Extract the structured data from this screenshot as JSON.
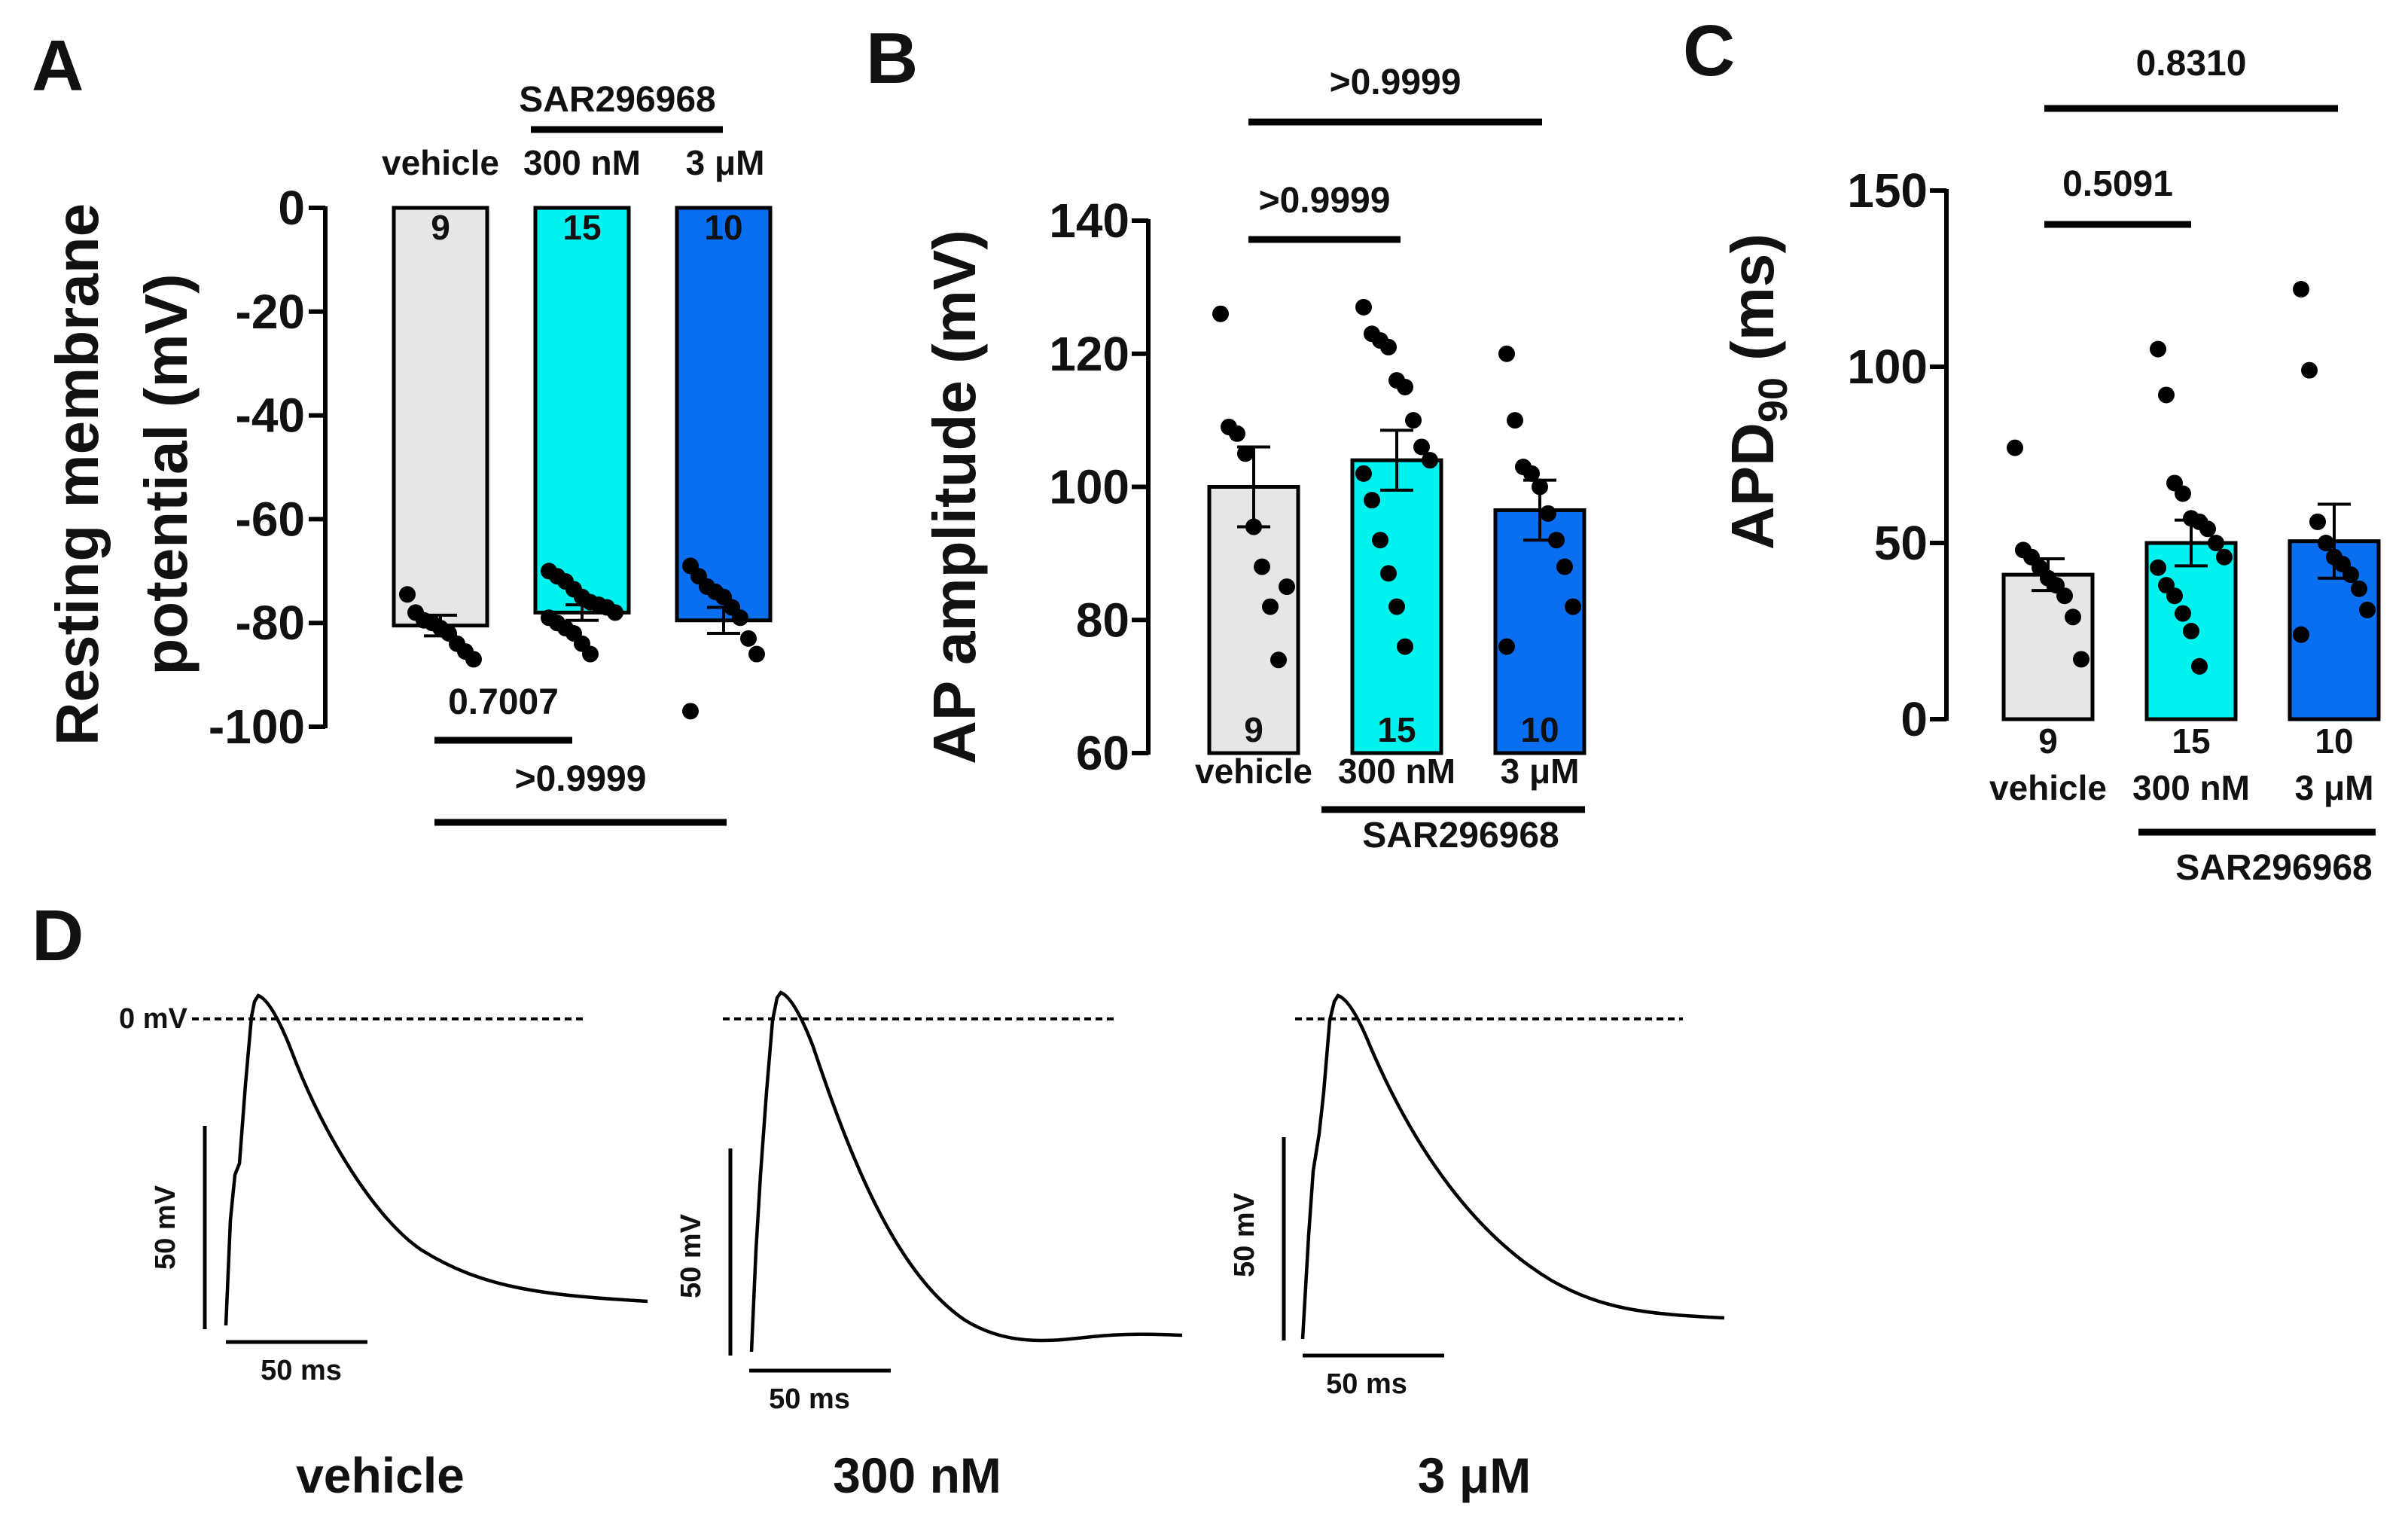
{
  "chart_data": [
    {
      "panel": "A",
      "type": "bar",
      "ylabel_line1": "Resting membrane",
      "ylabel_line2": "potential (mV)",
      "yticks": [
        "0",
        "-20",
        "-40",
        "-60",
        "-80",
        "-100"
      ],
      "ylim": [
        -100,
        0
      ],
      "categories": [
        "vehicle",
        "300 nM",
        "3 μM"
      ],
      "drug_label": "SAR296968",
      "values": [
        -80.5,
        -78,
        -79.5
      ],
      "sem": [
        2,
        1.5,
        2.5
      ],
      "n": [
        "9",
        "15",
        "10"
      ],
      "colors": [
        "#e6e6e6",
        "#00f3ee",
        "#0a6ef0"
      ],
      "points": [
        [
          -74.5,
          -78,
          -79.5,
          -80,
          -81,
          -82,
          -84,
          -85.5,
          -87
        ],
        [
          -70,
          -71,
          -72,
          -73.5,
          -75,
          -76,
          -76.5,
          -77,
          -78,
          -79,
          -80,
          -81,
          -82,
          -84,
          -86
        ],
        [
          -69,
          -71,
          -73,
          -74,
          -75,
          -77,
          -79,
          -83,
          -86,
          -97
        ]
      ],
      "comparisons": [
        {
          "label": "0.7007",
          "from": 0,
          "to": 1
        },
        {
          "label": ">0.9999",
          "from": 0,
          "to": 2
        }
      ]
    },
    {
      "panel": "B",
      "type": "bar",
      "ylabel": "AP amplitude (mV)",
      "yticks": [
        "140",
        "120",
        "100",
        "80",
        "60"
      ],
      "ylim": [
        60,
        140
      ],
      "categories": [
        "vehicle",
        "300 nM",
        "3 μM"
      ],
      "drug_label": "SAR296968",
      "values": [
        100,
        104,
        96.5
      ],
      "sem": [
        6,
        4.5,
        4.5
      ],
      "n": [
        "9",
        "15",
        "10"
      ],
      "colors": [
        "#e6e6e6",
        "#00f3ee",
        "#0a6ef0"
      ],
      "points": [
        [
          126,
          109,
          108,
          105,
          94,
          88,
          82,
          74,
          85
        ],
        [
          127,
          123,
          122,
          121,
          116,
          115,
          110,
          106,
          104,
          102,
          98,
          92,
          87,
          82,
          76
        ],
        [
          120,
          110,
          103,
          102,
          100,
          96,
          92,
          88,
          82,
          76
        ]
      ],
      "comparisons": [
        {
          "label": ">0.9999",
          "from": 0,
          "to": 1
        },
        {
          "label": ">0.9999",
          "from": 0,
          "to": 2
        }
      ]
    },
    {
      "panel": "C",
      "type": "bar",
      "ylabel_main": "APD",
      "ylabel_sub": "90",
      "ylabel_tail": " (ms)",
      "yticks": [
        "150",
        "100",
        "50",
        "0"
      ],
      "ylim": [
        0,
        150
      ],
      "categories": [
        "vehicle",
        "300 nM",
        "3 μM"
      ],
      "drug_label": "SAR296968",
      "values": [
        41,
        50,
        50.5
      ],
      "sem": [
        4.5,
        6.5,
        10.5
      ],
      "n": [
        "9",
        "15",
        "10"
      ],
      "colors": [
        "#e6e6e6",
        "#00f3ee",
        "#0a6ef0"
      ],
      "points": [
        [
          77,
          48,
          46,
          43,
          40,
          38,
          35,
          29,
          17
        ],
        [
          105,
          92,
          67,
          64,
          57,
          56,
          54,
          50,
          46,
          43,
          38,
          35,
          30,
          25,
          15
        ],
        [
          122,
          99,
          56,
          50,
          46,
          44,
          41,
          37,
          31,
          24
        ]
      ],
      "comparisons": [
        {
          "label": "0.5091",
          "from": 0,
          "to": 1
        },
        {
          "label": "0.8310",
          "from": 0,
          "to": 2
        }
      ]
    }
  ],
  "panel_d": {
    "letter": "D",
    "zero_label": "0 mV",
    "traces": [
      {
        "condition": "vehicle",
        "scale_v": "50 mV",
        "scale_t": "50 ms"
      },
      {
        "condition": "300 nM",
        "scale_v": "50 mV",
        "scale_t": "50 ms"
      },
      {
        "condition": "3 μM",
        "scale_v": "50 mV",
        "scale_t": "50 ms"
      }
    ]
  }
}
